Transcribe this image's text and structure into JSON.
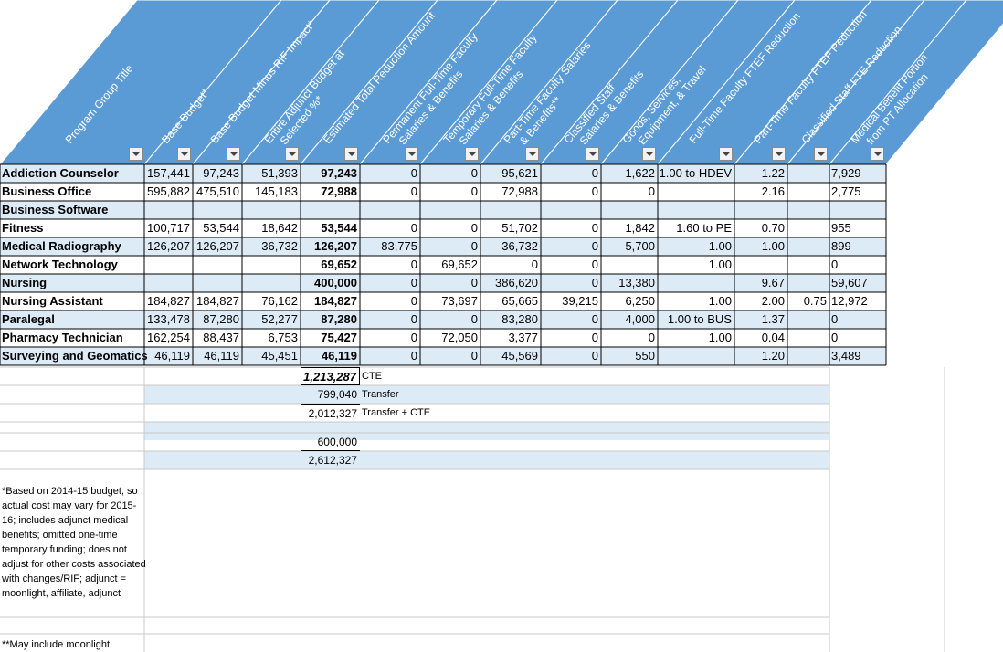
{
  "headers": [
    "Program Group Title",
    "Base Budget*",
    "Base Budget Minus RIF Impact*",
    "Entire Adjunct Budget at Selected %*",
    "Estimated Total Reduction Amount",
    "Permanent Full-Time Faculty Salaries & Benefits",
    "Temporary Full-Time Faculty Salaries & Benefits",
    "Part-Time Faculty Salaries & Benefits**",
    "Classified Staff Salaries & Benefits",
    "Goods, Services, Equipment, & Travel",
    "Full-Time Faculty FTEF Reduction",
    "Part-Time Faculty FTEF Reduction",
    "Classified Staff FTE Reduction",
    "Medical Benefit Portion from PT Allocation"
  ],
  "rows": [
    {
      "title": "Addiction Counselor",
      "c": [
        "157,441",
        "97,243",
        "51,393",
        "97,243",
        "0",
        "0",
        "95,621",
        "0",
        "1,622",
        "1.00 to HDEV",
        "1.22",
        "",
        "7,929"
      ]
    },
    {
      "title": "Business Office",
      "c": [
        "595,882",
        "475,510",
        "145,183",
        "72,988",
        "0",
        "0",
        "72,988",
        "0",
        "0",
        "",
        "2.16",
        "",
        "2,775"
      ]
    },
    {
      "title": "Business Software",
      "c": [
        "",
        "",
        "",
        "",
        "",
        "",
        "",
        "",
        "",
        "",
        "",
        "",
        ""
      ]
    },
    {
      "title": "Fitness",
      "c": [
        "100,717",
        "53,544",
        "18,642",
        "53,544",
        "0",
        "0",
        "51,702",
        "0",
        "1,842",
        "1.60 to PE",
        "0.70",
        "",
        "955"
      ]
    },
    {
      "title": "Medical Radiography",
      "c": [
        "126,207",
        "126,207",
        "36,732",
        "126,207",
        "83,775",
        "0",
        "36,732",
        "0",
        "5,700",
        "1.00",
        "1.00",
        "",
        "899"
      ]
    },
    {
      "title": "Network Technology",
      "c": [
        "",
        "",
        "",
        "69,652",
        "0",
        "69,652",
        "0",
        "0",
        "",
        "1.00",
        "",
        "",
        "0"
      ]
    },
    {
      "title": "Nursing",
      "c": [
        "",
        "",
        "",
        "400,000",
        "0",
        "0",
        "386,620",
        "0",
        "13,380",
        "",
        "9.67",
        "",
        "59,607"
      ]
    },
    {
      "title": "Nursing Assistant",
      "c": [
        "184,827",
        "184,827",
        "76,162",
        "184,827",
        "0",
        "73,697",
        "65,665",
        "39,215",
        "6,250",
        "1.00",
        "2.00",
        "0.75",
        "12,972"
      ]
    },
    {
      "title": "Paralegal",
      "c": [
        "133,478",
        "87,280",
        "52,277",
        "87,280",
        "0",
        "0",
        "83,280",
        "0",
        "4,000",
        "1.00 to BUS",
        "1.37",
        "",
        "0"
      ]
    },
    {
      "title": "Pharmacy Technician",
      "c": [
        "162,254",
        "88,437",
        "6,753",
        "75,427",
        "0",
        "72,050",
        "3,377",
        "0",
        "0",
        "1.00",
        "0.04",
        "",
        "0"
      ]
    },
    {
      "title": "Surveying and Geomatics",
      "c": [
        "46,119",
        "46,119",
        "45,451",
        "46,119",
        "0",
        "0",
        "45,569",
        "0",
        "550",
        "",
        "1.20",
        "",
        "3,489"
      ]
    }
  ],
  "totals": {
    "cte_value": "1,213,287",
    "cte_label": "CTE",
    "transfer_value": "799,040",
    "transfer_label": "Transfer",
    "transfer_cte_value": "2,012,327",
    "transfer_cte_label": "Transfer + CTE",
    "extra_value": "600,000",
    "grand_total": "2,612,327"
  },
  "notes": {
    "note1": "*Based on 2014-15 budget, so actual cost may vary for 2015-16; includes adjunct medical benefits; omitted one-time temporary funding; does not adjust for other costs associated with changes/RIF; adjunct = moonlight, affiliate, adjunct",
    "note2": "**May include moonlight"
  },
  "colors": {
    "header_fill": "#5b9bd5",
    "band_fill": "#ddebf7",
    "grid": "#c8c8c8",
    "border": "#000000"
  }
}
